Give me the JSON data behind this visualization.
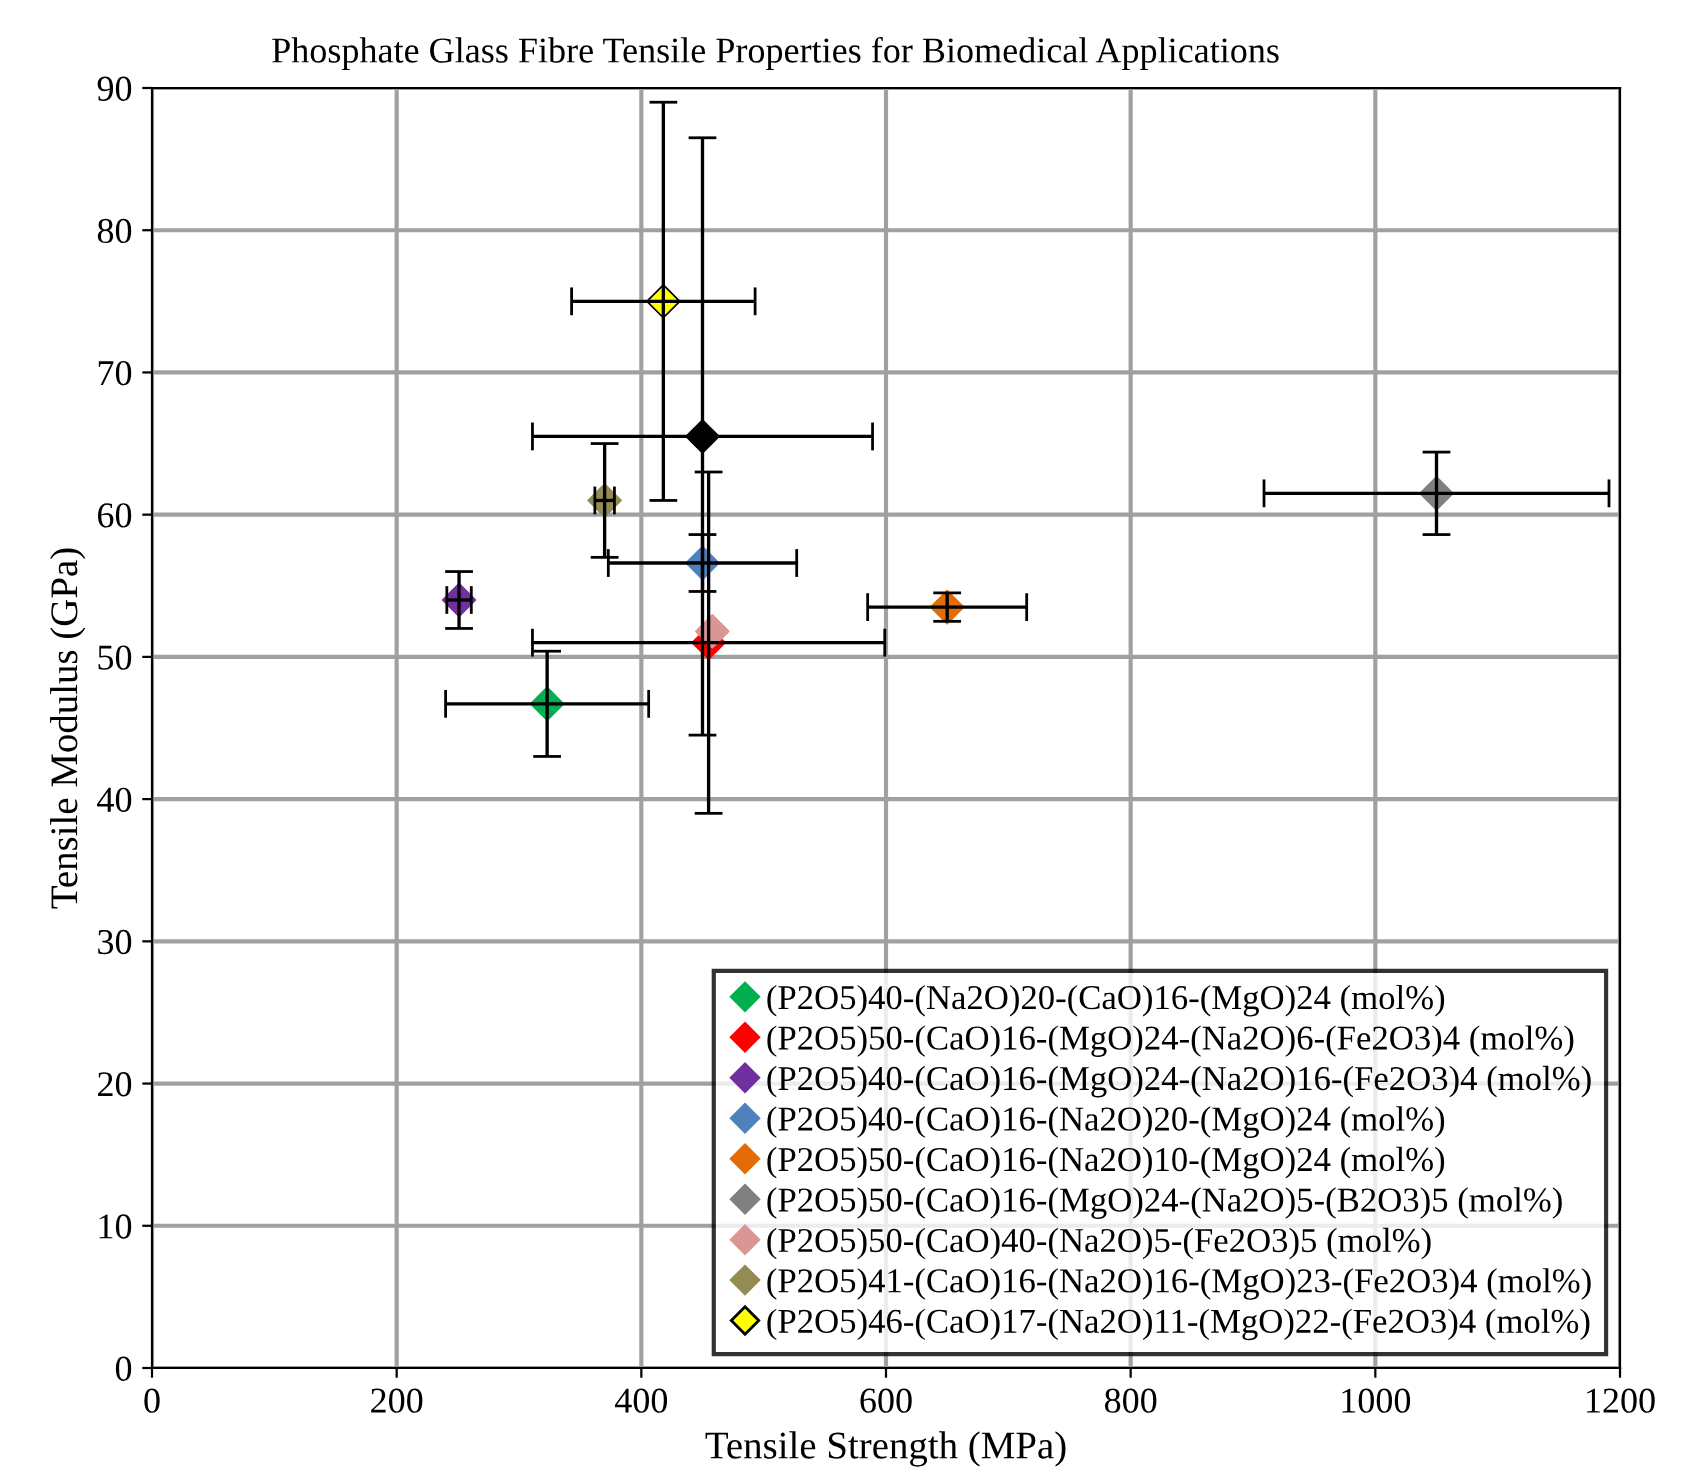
{
  "chart_data": {
    "type": "scatter",
    "title": "Phosphate Glass Fibre Tensile Properties for Biomedical Applications",
    "xlabel": "Tensile Strength (MPa)",
    "ylabel": "Tensile Modulus (GPa)",
    "xlim": [
      0,
      1200
    ],
    "xticks": [
      0,
      200,
      400,
      600,
      800,
      1000,
      1200
    ],
    "ylim": [
      0,
      90
    ],
    "yticks": [
      0,
      10,
      20,
      30,
      40,
      50,
      60,
      70,
      80,
      90
    ],
    "grid": true,
    "legend": "bottom right",
    "marker": "diamond",
    "series": [
      {
        "color": "#000000",
        "x": [
          450
        ],
        "values": [
          65.5
        ],
        "errors": [
          21
        ],
        "xerrors": [
          139
        ]
      },
      {
        "name": "(P2O5)40-(Na2O)20-(CaO)16-(MgO)24 (mol%)",
        "color": "#00b050",
        "x": [
          323
        ],
        "values": [
          46.7
        ],
        "errors": [
          3.7
        ],
        "xerrors": [
          83
        ]
      },
      {
        "name": "(P2O5)50-(CaO)16-(MgO)24-(Na2O)6-(Fe2O3)4 (mol%)",
        "color": "#ff0000",
        "x": [
          455
        ],
        "values": [
          51
        ],
        "errors": [
          12
        ],
        "xerrors": [
          144
        ]
      },
      {
        "name": "(P2O5)40-(CaO)16-(MgO)24-(Na2O)16-(Fe2O3)4 (mol%)",
        "color": "#7030a0",
        "x": [
          251
        ],
        "values": [
          54
        ],
        "errors": [
          2
        ],
        "xerrors": [
          10
        ]
      },
      {
        "name": "(P2O5)40-(CaO)16-(Na2O)20-(MgO)24 (mol%)",
        "color": "#4f81bd",
        "x": [
          450
        ],
        "values": [
          56.6
        ],
        "errors": [
          2
        ],
        "xerrors": [
          77
        ]
      },
      {
        "name": "(P2O5)50-(CaO)16-(Na2O)10-(MgO)24 (mol%)",
        "color": "#e36c09",
        "x": [
          650
        ],
        "values": [
          53.5
        ],
        "errors": [
          1
        ],
        "xerrors": [
          65
        ]
      },
      {
        "name": "(P2O5)50-(CaO)16-(MgO)24-(Na2O)5-(B2O3)5 (mol%)",
        "color": "#808080",
        "x": [
          1050
        ],
        "values": [
          61.5
        ],
        "errors": [
          2.9
        ],
        "xerrors": [
          141
        ]
      },
      {
        "name": "(P2O5)50-(CaO)40-(Na2O)5-(Fe2O3)5 (mol%)",
        "color": "#d99694",
        "x": [
          458
        ],
        "values": [
          51.8
        ],
        "errors": [
          null
        ],
        "xerrors": [
          null
        ]
      },
      {
        "name": "(P2O5)41-(CaO)16-(Na2O)16-(MgO)23-(Fe2O3)4 (mol%)",
        "color": "#948a54",
        "x": [
          370
        ],
        "values": [
          61
        ],
        "errors": [
          4
        ],
        "xerrors": [
          8
        ]
      },
      {
        "name": "(P2O5)46-(CaO)17-(Na2O)11-(MgO)22-(Fe2O3)4 (mol%)",
        "color": "#ffff00",
        "x": [
          418
        ],
        "values": [
          75
        ],
        "errors": [
          14
        ],
        "xerrors": [
          75
        ]
      }
    ]
  }
}
